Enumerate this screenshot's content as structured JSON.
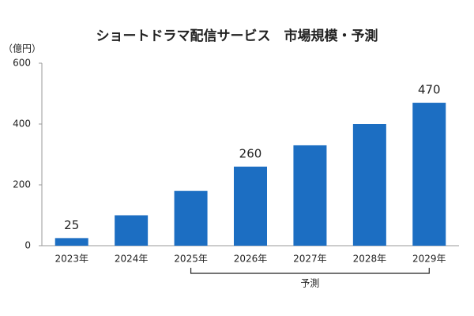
{
  "chart_data": {
    "type": "bar",
    "title": "ショートドラマ配信サービス　市場規模・予測",
    "y_unit": "（億円）",
    "categories": [
      "2023年",
      "2024年",
      "2025年",
      "2026年",
      "2027年",
      "2028年",
      "2029年"
    ],
    "values": [
      25,
      100,
      180,
      260,
      330,
      400,
      470
    ],
    "value_labels": [
      "25",
      null,
      null,
      "260",
      null,
      null,
      "470"
    ],
    "color": "#1c6ec2",
    "ylim": [
      0,
      600
    ],
    "yticks": [
      0,
      200,
      400,
      600
    ],
    "grid": false,
    "annotation": "予測"
  }
}
